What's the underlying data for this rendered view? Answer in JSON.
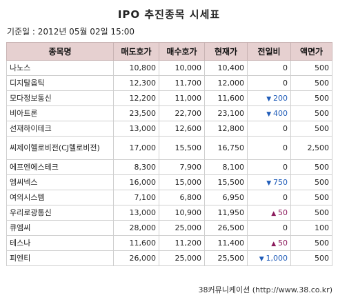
{
  "title": "IPO 추진종목 시세표",
  "base_date": "기준일 : 2012년 05월 02일 15:00",
  "headers": [
    "종목명",
    "매도호가",
    "매수호가",
    "현재가",
    "전일비",
    "액면가"
  ],
  "rows": [
    {
      "name": "나노스",
      "ask": "10,800",
      "bid": "10,000",
      "price": "10,400",
      "dir": "none",
      "change": "0",
      "par": "500"
    },
    {
      "name": "디지탈옵틱",
      "ask": "12,300",
      "bid": "11,700",
      "price": "12,000",
      "dir": "none",
      "change": "0",
      "par": "500"
    },
    {
      "name": "모다정보통신",
      "ask": "12,200",
      "bid": "11,000",
      "price": "11,600",
      "dir": "down",
      "change": "200",
      "par": "500"
    },
    {
      "name": "비아트론",
      "ask": "23,500",
      "bid": "22,700",
      "price": "23,100",
      "dir": "down",
      "change": "400",
      "par": "500"
    },
    {
      "name": "선재하이테크",
      "ask": "13,000",
      "bid": "12,600",
      "price": "12,800",
      "dir": "none",
      "change": "0",
      "par": "500"
    },
    {
      "name": "씨제이헬로비전(CJ헬로비전)",
      "ask": "17,000",
      "bid": "15,500",
      "price": "16,750",
      "dir": "none",
      "change": "0",
      "par": "2,500",
      "tall": true
    },
    {
      "name": "에프엔에스테크",
      "ask": "8,300",
      "bid": "7,900",
      "price": "8,100",
      "dir": "none",
      "change": "0",
      "par": "500"
    },
    {
      "name": "엠씨넥스",
      "ask": "16,000",
      "bid": "15,000",
      "price": "15,500",
      "dir": "down",
      "change": "750",
      "par": "500"
    },
    {
      "name": "여의시스템",
      "ask": "7,100",
      "bid": "6,800",
      "price": "6,950",
      "dir": "none",
      "change": "0",
      "par": "500"
    },
    {
      "name": "우리로광통신",
      "ask": "13,000",
      "bid": "10,900",
      "price": "11,950",
      "dir": "up",
      "change": "50",
      "par": "500"
    },
    {
      "name": "큐엠씨",
      "ask": "28,000",
      "bid": "25,000",
      "price": "26,500",
      "dir": "none",
      "change": "0",
      "par": "100"
    },
    {
      "name": "테스나",
      "ask": "11,600",
      "bid": "11,200",
      "price": "11,400",
      "dir": "up",
      "change": "50",
      "par": "500"
    },
    {
      "name": "피엔티",
      "ask": "26,000",
      "bid": "25,000",
      "price": "25,500",
      "dir": "down",
      "change": "1,000",
      "par": "500"
    }
  ],
  "footer": "38커뮤니케이션 (http://www.38.co.kr)"
}
